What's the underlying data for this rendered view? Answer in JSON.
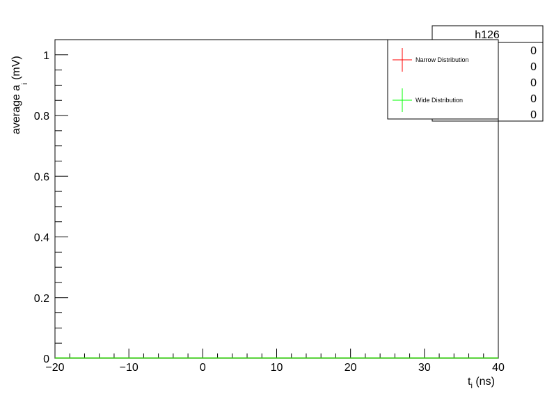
{
  "chart_data": {
    "type": "line",
    "title": "",
    "xlabel": "t",
    "xlabel_sub": "i",
    "xlabel_unit": " (ns)",
    "ylabel": "average a",
    "ylabel_sub": "i",
    "ylabel_unit": "  (mV)",
    "xlim": [
      -20,
      40
    ],
    "ylim": [
      0,
      1.05
    ],
    "x_ticks": [
      -20,
      -10,
      0,
      10,
      20,
      30,
      40
    ],
    "x_tick_labels": [
      "−20",
      "−10",
      "0",
      "10",
      "20",
      "30",
      "40"
    ],
    "y_ticks": [
      0,
      0.2,
      0.4,
      0.6,
      0.8,
      1
    ],
    "y_tick_labels": [
      "0",
      "0.2",
      "0.4",
      "0.6",
      "0.8",
      "1"
    ],
    "grid": false,
    "legend_position": "top-right",
    "series": [
      {
        "name": "Narrow Distribution",
        "color": "#ff0000",
        "x": [
          -20,
          40
        ],
        "y": [
          0,
          0
        ]
      },
      {
        "name": "Wide Distribution",
        "color": "#00ff00",
        "x": [
          -20,
          40
        ],
        "y": [
          0,
          0
        ]
      }
    ],
    "stats_box": {
      "title": "h126",
      "values": [
        "0",
        "0",
        "0",
        "0",
        "0"
      ]
    }
  }
}
